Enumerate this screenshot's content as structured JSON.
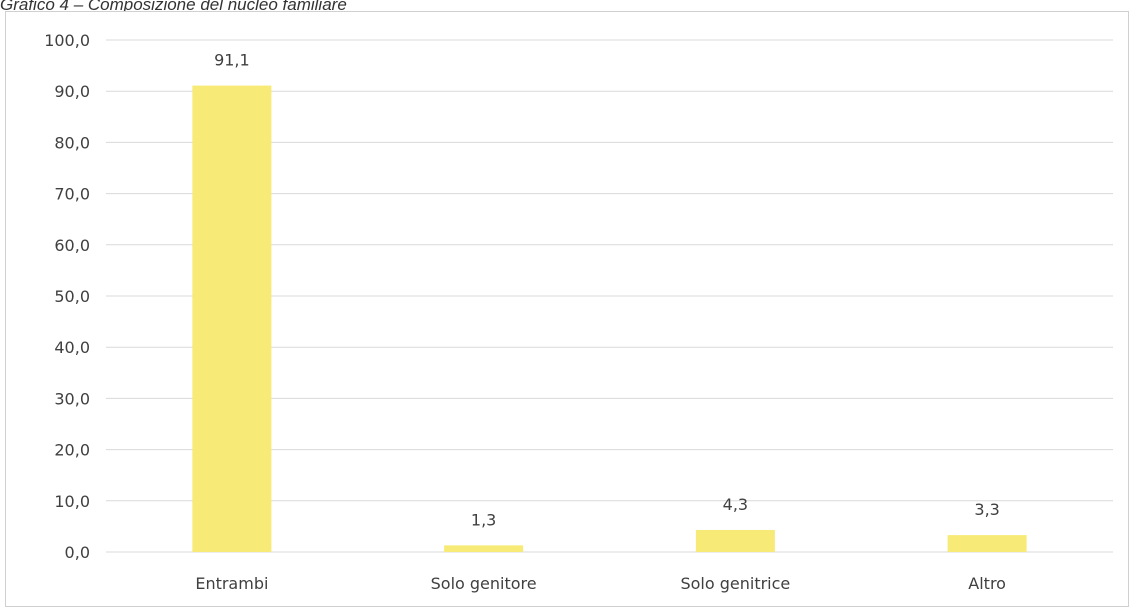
{
  "caption": "Grafico 4 – Composizione del nucleo familiare",
  "chart_data": {
    "type": "bar",
    "categories": [
      "Entrambi",
      "Solo genitore",
      "Solo genitrice",
      "Altro"
    ],
    "values": [
      91.1,
      1.3,
      4.3,
      3.3
    ],
    "value_labels": [
      "91,1",
      "1,3",
      "4,3",
      "3,3"
    ],
    "ylim": [
      0,
      100
    ],
    "y_ticks": [
      0,
      10,
      20,
      30,
      40,
      50,
      60,
      70,
      80,
      90,
      100
    ],
    "y_tick_labels": [
      "0,0",
      "10,0",
      "20,0",
      "30,0",
      "40,0",
      "50,0",
      "60,0",
      "70,0",
      "80,0",
      "90,0",
      "100,0"
    ],
    "title": "",
    "xlabel": "",
    "ylabel": "",
    "grid": true,
    "legend": "none",
    "bar_color": "#F7EA76",
    "grid_color": "#D9D9D9",
    "text_color": "#404040"
  }
}
